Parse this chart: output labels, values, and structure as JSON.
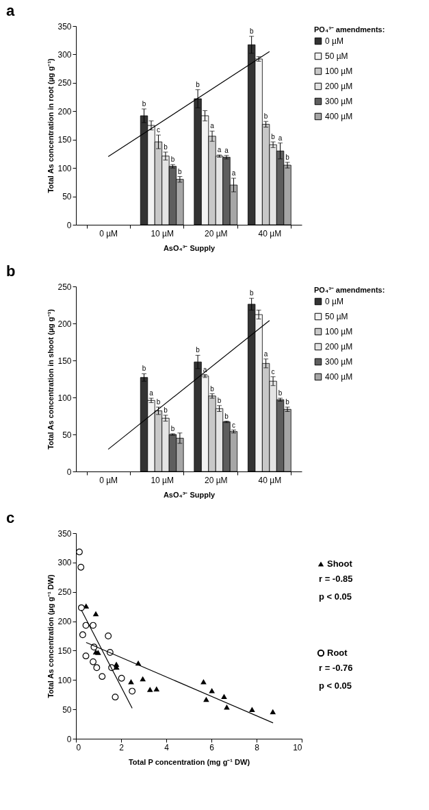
{
  "chart_data": [
    {
      "type": "bar",
      "title": "a",
      "xlabel": "AsO₄³⁻ Supply",
      "ylabel": "Total As concentration in root (µg g⁻¹)",
      "legend_title": "PO₄³⁻ amendments:",
      "legend": "right",
      "categories": [
        "0 µM",
        "10 µM",
        "20 µM",
        "40 µM"
      ],
      "ylim": [
        0,
        350
      ],
      "yticks": [
        0,
        50,
        100,
        150,
        200,
        250,
        300,
        350
      ],
      "series": [
        {
          "name": "0 µM",
          "color": "#333333",
          "values": [
            null,
            192,
            222,
            317
          ],
          "errors": [
            null,
            12,
            16,
            15
          ],
          "value_labels": [
            null,
            "b",
            "b",
            "b"
          ]
        },
        {
          "name": "50 µM",
          "color": "#f2f2f2",
          "values": [
            null,
            175,
            192,
            292
          ],
          "errors": [
            null,
            8,
            9,
            4
          ],
          "value_labels": [
            null,
            null,
            null,
            null
          ]
        },
        {
          "name": "100 µM",
          "color": "#c8c8c8",
          "values": [
            null,
            146,
            156,
            177
          ],
          "errors": [
            null,
            12,
            9,
            5
          ],
          "value_labels": [
            null,
            "c",
            "a",
            "b"
          ]
        },
        {
          "name": "200 µM",
          "color": "#e4e4e4",
          "values": [
            null,
            121,
            121,
            141
          ],
          "errors": [
            null,
            7,
            2,
            5
          ],
          "value_labels": [
            null,
            "b",
            "a",
            "b"
          ]
        },
        {
          "name": "300 µM",
          "color": "#5e5e5e",
          "values": [
            null,
            103,
            119,
            130
          ],
          "errors": [
            null,
            3,
            3,
            14
          ],
          "value_labels": [
            null,
            "b",
            "a",
            "a"
          ]
        },
        {
          "name": "400 µM",
          "color": "#a6a6a6",
          "values": [
            null,
            80,
            70,
            105
          ],
          "errors": [
            null,
            5,
            12,
            5
          ],
          "value_labels": [
            null,
            "b",
            "a",
            "b"
          ]
        },
        {
          "type": "line",
          "color": "#000000",
          "x": [
            "0 µM",
            "40 µM"
          ],
          "values": [
            120,
            305
          ]
        }
      ]
    },
    {
      "type": "bar",
      "title": "b",
      "xlabel": "AsO₄³⁻ Supply",
      "ylabel": "Total As concentration in shoot (µg g⁻¹)",
      "legend_title": "PO₄³⁻ amendments:",
      "legend": "right",
      "categories": [
        "0 µM",
        "10 µM",
        "20 µM",
        "40 µM"
      ],
      "ylim": [
        0,
        250
      ],
      "yticks": [
        0,
        50,
        100,
        150,
        200,
        250
      ],
      "series": [
        {
          "name": "0 µM",
          "color": "#333333",
          "values": [
            null,
            127,
            148,
            226
          ],
          "errors": [
            null,
            5,
            9,
            8
          ],
          "value_labels": [
            null,
            "b",
            "b",
            "b"
          ]
        },
        {
          "name": "50 µM",
          "color": "#f2f2f2",
          "values": [
            null,
            96,
            129,
            212
          ],
          "errors": [
            null,
            3,
            2,
            6
          ],
          "value_labels": [
            null,
            "a",
            "a",
            null
          ]
        },
        {
          "name": "100 µM",
          "color": "#c8c8c8",
          "values": [
            null,
            82,
            102,
            146
          ],
          "errors": [
            null,
            5,
            3,
            6
          ],
          "value_labels": [
            null,
            "b",
            "b",
            "a"
          ]
        },
        {
          "name": "200 µM",
          "color": "#e4e4e4",
          "values": [
            null,
            72,
            85,
            122
          ],
          "errors": [
            null,
            4,
            4,
            6
          ],
          "value_labels": [
            null,
            "b",
            "b",
            "c"
          ]
        },
        {
          "name": "300 µM",
          "color": "#5e5e5e",
          "values": [
            null,
            50,
            67,
            97
          ],
          "errors": [
            null,
            1,
            1,
            2
          ],
          "value_labels": [
            null,
            "b",
            "b",
            "b"
          ]
        },
        {
          "name": "400 µM",
          "color": "#a6a6a6",
          "values": [
            null,
            45,
            54,
            84
          ],
          "errors": [
            null,
            7,
            2,
            3
          ],
          "value_labels": [
            null,
            null,
            "c",
            "b"
          ]
        },
        {
          "type": "line",
          "color": "#000000",
          "x": [
            "0 µM",
            "40 µM"
          ],
          "values": [
            30,
            204
          ]
        }
      ]
    },
    {
      "type": "scatter",
      "title": "c",
      "xlabel": "Total P concentration (mg g⁻¹ DW)",
      "ylabel": "Total As concentration (µg g⁻¹ DW)",
      "legend": "right",
      "xlim": [
        0,
        10
      ],
      "xticks": [
        0,
        2,
        4,
        6,
        8,
        10
      ],
      "ylim": [
        0,
        350
      ],
      "yticks": [
        0,
        50,
        100,
        150,
        200,
        250,
        300,
        350
      ],
      "annotations": [
        "r = -0.85",
        "p < 0.05",
        "r = -0.76",
        "p < 0.05"
      ],
      "series": [
        {
          "name": "Shoot",
          "color": "#000000",
          "marker": "triangle",
          "x": [
            0.45,
            0.88,
            0.88,
            0.98,
            1.79,
            1.8,
            2.76,
            2.44,
            2.96,
            3.28,
            3.57,
            5.65,
            5.77,
            6.02,
            6.56,
            6.68,
            7.8,
            8.72
          ],
          "values": [
            226,
            213,
            148,
            147,
            127,
            122,
            129,
            97,
            102,
            84,
            85,
            97,
            67,
            82,
            72,
            54,
            50,
            46
          ]
        },
        {
          "name": "Root",
          "color": "#000000",
          "marker": "circle",
          "x": [
            0.15,
            0.22,
            0.24,
            0.44,
            0.3,
            0.76,
            0.44,
            0.8,
            0.76,
            0.92,
            1.16,
            1.43,
            1.51,
            1.58,
            1.74,
            2.02,
            2.49
          ],
          "values": [
            318,
            292,
            223,
            193,
            177,
            193,
            141,
            156,
            131,
            121,
            106,
            175,
            147,
            121,
            71,
            103,
            81
          ]
        },
        {
          "type": "line",
          "color": "#000000",
          "x": [
            0.45,
            8.73
          ],
          "values": [
            164,
            27
          ]
        },
        {
          "type": "line",
          "color": "#000000",
          "x": [
            0.24,
            2.49
          ],
          "values": [
            219,
            52
          ]
        }
      ]
    }
  ]
}
